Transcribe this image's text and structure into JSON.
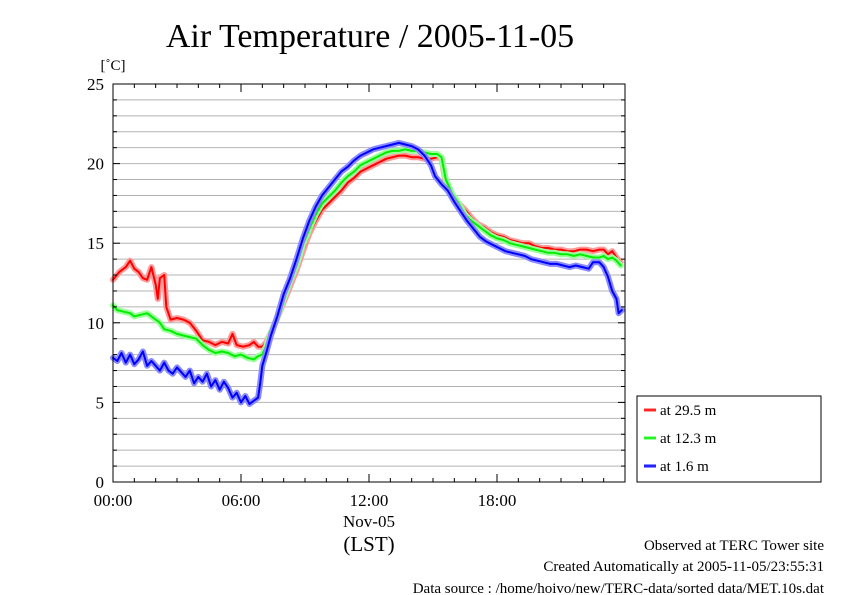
{
  "chart_data": {
    "type": "line",
    "title": "Air Temperature / 2005-11-05",
    "ylabel": "[˚C]",
    "xlabel_date": "Nov-05",
    "xlabel": "(LST)",
    "ylim": [
      0,
      25
    ],
    "yticks": [
      0,
      5,
      10,
      15,
      20,
      25
    ],
    "y_minor_step": 1,
    "xlim": [
      0,
      24
    ],
    "xticks": [
      {
        "x": 0,
        "label": "00:00"
      },
      {
        "x": 6,
        "label": "06:00"
      },
      {
        "x": 12,
        "label": "12:00"
      },
      {
        "x": 18,
        "label": "18:00"
      }
    ],
    "grid": true,
    "legend_position": "right",
    "series": [
      {
        "name": "at 29.5 m",
        "color": "#ff0000",
        "halo": "#ff9a9a",
        "points": [
          [
            0,
            12.7
          ],
          [
            0.3,
            13.2
          ],
          [
            0.6,
            13.5
          ],
          [
            0.8,
            13.9
          ],
          [
            1.0,
            13.4
          ],
          [
            1.2,
            13.2
          ],
          [
            1.4,
            12.8
          ],
          [
            1.6,
            12.7
          ],
          [
            1.8,
            13.5
          ],
          [
            2.0,
            12.4
          ],
          [
            2.1,
            11.5
          ],
          [
            2.2,
            12.8
          ],
          [
            2.4,
            13.0
          ],
          [
            2.5,
            11.0
          ],
          [
            2.7,
            10.2
          ],
          [
            3.0,
            10.3
          ],
          [
            3.3,
            10.2
          ],
          [
            3.6,
            10.0
          ],
          [
            3.9,
            9.5
          ],
          [
            4.2,
            8.9
          ],
          [
            4.5,
            8.8
          ],
          [
            4.8,
            8.6
          ],
          [
            5.1,
            8.8
          ],
          [
            5.4,
            8.7
          ],
          [
            5.6,
            9.3
          ],
          [
            5.8,
            8.6
          ],
          [
            6.1,
            8.5
          ],
          [
            6.4,
            8.6
          ],
          [
            6.6,
            8.8
          ],
          [
            6.8,
            8.5
          ],
          [
            7.0,
            8.5
          ],
          [
            7.2,
            8.8
          ],
          [
            7.4,
            9.4
          ],
          [
            7.7,
            10.3
          ],
          [
            8.0,
            11.3
          ],
          [
            8.3,
            12.3
          ],
          [
            8.6,
            13.3
          ],
          [
            8.9,
            14.5
          ],
          [
            9.2,
            15.6
          ],
          [
            9.5,
            16.4
          ],
          [
            9.8,
            17.1
          ],
          [
            10.1,
            17.5
          ],
          [
            10.4,
            17.9
          ],
          [
            10.7,
            18.3
          ],
          [
            11.0,
            18.8
          ],
          [
            11.3,
            19.1
          ],
          [
            11.6,
            19.5
          ],
          [
            11.9,
            19.7
          ],
          [
            12.2,
            19.9
          ],
          [
            12.5,
            20.1
          ],
          [
            12.8,
            20.3
          ],
          [
            13.1,
            20.4
          ],
          [
            13.4,
            20.5
          ],
          [
            13.7,
            20.5
          ],
          [
            14.0,
            20.4
          ],
          [
            14.3,
            20.4
          ],
          [
            14.6,
            20.3
          ],
          [
            14.9,
            20.3
          ],
          [
            15.2,
            20.4
          ],
          [
            15.4,
            20.3
          ],
          [
            15.6,
            18.8
          ],
          [
            15.9,
            18.0
          ],
          [
            16.2,
            17.5
          ],
          [
            16.5,
            17.1
          ],
          [
            16.8,
            16.6
          ],
          [
            17.1,
            16.2
          ],
          [
            17.4,
            16.0
          ],
          [
            17.7,
            15.7
          ],
          [
            18.0,
            15.5
          ],
          [
            18.3,
            15.4
          ],
          [
            18.6,
            15.2
          ],
          [
            18.9,
            15.1
          ],
          [
            19.2,
            15.0
          ],
          [
            19.5,
            15.0
          ],
          [
            19.8,
            14.8
          ],
          [
            20.1,
            14.7
          ],
          [
            20.4,
            14.7
          ],
          [
            20.7,
            14.6
          ],
          [
            21.0,
            14.6
          ],
          [
            21.3,
            14.5
          ],
          [
            21.6,
            14.5
          ],
          [
            21.9,
            14.6
          ],
          [
            22.2,
            14.6
          ],
          [
            22.5,
            14.5
          ],
          [
            22.8,
            14.6
          ],
          [
            23.0,
            14.6
          ],
          [
            23.2,
            14.3
          ],
          [
            23.4,
            14.5
          ],
          [
            23.6,
            14.1
          ],
          [
            23.8,
            13.8
          ]
        ]
      },
      {
        "name": "at 12.3 m",
        "color": "#00ee00",
        "halo": "#9aff9a",
        "points": [
          [
            0,
            11.1
          ],
          [
            0.2,
            10.8
          ],
          [
            0.5,
            10.7
          ],
          [
            0.8,
            10.6
          ],
          [
            1.0,
            10.4
          ],
          [
            1.3,
            10.5
          ],
          [
            1.6,
            10.6
          ],
          [
            1.9,
            10.3
          ],
          [
            2.2,
            10.0
          ],
          [
            2.4,
            9.6
          ],
          [
            2.7,
            9.5
          ],
          [
            3.0,
            9.3
          ],
          [
            3.3,
            9.2
          ],
          [
            3.6,
            9.1
          ],
          [
            3.9,
            9.0
          ],
          [
            4.2,
            8.6
          ],
          [
            4.5,
            8.3
          ],
          [
            4.8,
            8.1
          ],
          [
            5.1,
            8.2
          ],
          [
            5.4,
            8.1
          ],
          [
            5.7,
            7.9
          ],
          [
            6.0,
            8.0
          ],
          [
            6.3,
            7.8
          ],
          [
            6.6,
            7.7
          ],
          [
            6.8,
            7.9
          ],
          [
            7.0,
            8.0
          ],
          [
            7.2,
            8.6
          ],
          [
            7.4,
            9.4
          ],
          [
            7.7,
            10.3
          ],
          [
            8.0,
            11.5
          ],
          [
            8.3,
            12.6
          ],
          [
            8.6,
            13.6
          ],
          [
            8.9,
            14.9
          ],
          [
            9.2,
            15.9
          ],
          [
            9.5,
            16.8
          ],
          [
            9.8,
            17.5
          ],
          [
            10.1,
            17.9
          ],
          [
            10.4,
            18.3
          ],
          [
            10.7,
            18.8
          ],
          [
            11.0,
            19.2
          ],
          [
            11.3,
            19.5
          ],
          [
            11.6,
            19.9
          ],
          [
            11.9,
            20.1
          ],
          [
            12.2,
            20.3
          ],
          [
            12.5,
            20.5
          ],
          [
            12.8,
            20.7
          ],
          [
            13.1,
            20.8
          ],
          [
            13.4,
            20.8
          ],
          [
            13.7,
            20.9
          ],
          [
            14.0,
            20.8
          ],
          [
            14.3,
            20.8
          ],
          [
            14.6,
            20.7
          ],
          [
            14.9,
            20.6
          ],
          [
            15.2,
            20.6
          ],
          [
            15.4,
            20.4
          ],
          [
            15.6,
            19.0
          ],
          [
            15.9,
            18.1
          ],
          [
            16.2,
            17.5
          ],
          [
            16.5,
            16.8
          ],
          [
            16.8,
            16.4
          ],
          [
            17.1,
            16.1
          ],
          [
            17.4,
            15.8
          ],
          [
            17.7,
            15.5
          ],
          [
            18.0,
            15.3
          ],
          [
            18.3,
            15.2
          ],
          [
            18.6,
            15.0
          ],
          [
            18.9,
            14.9
          ],
          [
            19.2,
            14.8
          ],
          [
            19.5,
            14.7
          ],
          [
            19.8,
            14.6
          ],
          [
            20.1,
            14.5
          ],
          [
            20.4,
            14.4
          ],
          [
            20.7,
            14.4
          ],
          [
            21.0,
            14.3
          ],
          [
            21.3,
            14.3
          ],
          [
            21.6,
            14.2
          ],
          [
            21.9,
            14.3
          ],
          [
            22.2,
            14.2
          ],
          [
            22.5,
            14.1
          ],
          [
            22.8,
            14.1
          ],
          [
            23.0,
            14.2
          ],
          [
            23.2,
            14.0
          ],
          [
            23.4,
            14.1
          ],
          [
            23.6,
            13.9
          ],
          [
            23.8,
            13.6
          ]
        ]
      },
      {
        "name": "at 1.6 m",
        "color": "#0000ff",
        "halo": "#8a8aff",
        "points": [
          [
            0,
            7.8
          ],
          [
            0.2,
            7.6
          ],
          [
            0.4,
            8.1
          ],
          [
            0.6,
            7.5
          ],
          [
            0.8,
            8.0
          ],
          [
            1.0,
            7.4
          ],
          [
            1.2,
            7.7
          ],
          [
            1.4,
            8.2
          ],
          [
            1.6,
            7.3
          ],
          [
            1.8,
            7.6
          ],
          [
            2.0,
            7.3
          ],
          [
            2.2,
            7.0
          ],
          [
            2.4,
            7.5
          ],
          [
            2.6,
            7.0
          ],
          [
            2.8,
            6.8
          ],
          [
            3.0,
            7.2
          ],
          [
            3.2,
            6.9
          ],
          [
            3.4,
            6.6
          ],
          [
            3.6,
            7.0
          ],
          [
            3.8,
            6.2
          ],
          [
            4.0,
            6.6
          ],
          [
            4.2,
            6.3
          ],
          [
            4.4,
            6.8
          ],
          [
            4.6,
            6.0
          ],
          [
            4.8,
            6.4
          ],
          [
            5.0,
            5.8
          ],
          [
            5.2,
            6.3
          ],
          [
            5.4,
            5.9
          ],
          [
            5.6,
            5.3
          ],
          [
            5.8,
            5.6
          ],
          [
            6.0,
            5.0
          ],
          [
            6.2,
            5.4
          ],
          [
            6.4,
            4.9
          ],
          [
            6.6,
            5.1
          ],
          [
            6.8,
            5.3
          ],
          [
            6.9,
            6.2
          ],
          [
            7.0,
            7.3
          ],
          [
            7.2,
            8.2
          ],
          [
            7.4,
            9.2
          ],
          [
            7.7,
            10.4
          ],
          [
            8.0,
            11.8
          ],
          [
            8.3,
            12.8
          ],
          [
            8.6,
            14.0
          ],
          [
            8.9,
            15.3
          ],
          [
            9.2,
            16.4
          ],
          [
            9.5,
            17.3
          ],
          [
            9.8,
            18.0
          ],
          [
            10.1,
            18.5
          ],
          [
            10.4,
            19.0
          ],
          [
            10.7,
            19.5
          ],
          [
            11.0,
            19.8
          ],
          [
            11.3,
            20.2
          ],
          [
            11.6,
            20.5
          ],
          [
            11.9,
            20.7
          ],
          [
            12.2,
            20.9
          ],
          [
            12.5,
            21.0
          ],
          [
            12.8,
            21.1
          ],
          [
            13.1,
            21.2
          ],
          [
            13.4,
            21.3
          ],
          [
            13.7,
            21.2
          ],
          [
            14.0,
            21.1
          ],
          [
            14.3,
            20.9
          ],
          [
            14.6,
            20.5
          ],
          [
            14.9,
            19.9
          ],
          [
            15.1,
            19.2
          ],
          [
            15.4,
            18.7
          ],
          [
            15.7,
            18.3
          ],
          [
            16.0,
            17.6
          ],
          [
            16.3,
            17.0
          ],
          [
            16.6,
            16.4
          ],
          [
            16.9,
            15.9
          ],
          [
            17.2,
            15.4
          ],
          [
            17.5,
            15.1
          ],
          [
            17.8,
            14.9
          ],
          [
            18.1,
            14.7
          ],
          [
            18.4,
            14.5
          ],
          [
            18.7,
            14.4
          ],
          [
            19.0,
            14.3
          ],
          [
            19.3,
            14.2
          ],
          [
            19.6,
            14.0
          ],
          [
            19.9,
            13.9
          ],
          [
            20.2,
            13.8
          ],
          [
            20.5,
            13.7
          ],
          [
            20.8,
            13.7
          ],
          [
            21.1,
            13.6
          ],
          [
            21.4,
            13.5
          ],
          [
            21.7,
            13.6
          ],
          [
            22.0,
            13.5
          ],
          [
            22.3,
            13.4
          ],
          [
            22.5,
            13.8
          ],
          [
            22.8,
            13.8
          ],
          [
            23.0,
            13.5
          ],
          [
            23.2,
            12.9
          ],
          [
            23.4,
            12.0
          ],
          [
            23.6,
            11.5
          ],
          [
            23.7,
            10.6
          ],
          [
            23.85,
            10.8
          ]
        ]
      }
    ],
    "notes": [
      "Observed at TERC Tower site",
      "Created Automatically at 2005-11-05/23:55:31",
      "Data source : /home/hoivo/new/TERC-data/sorted  data/MET.10s.dat"
    ]
  }
}
